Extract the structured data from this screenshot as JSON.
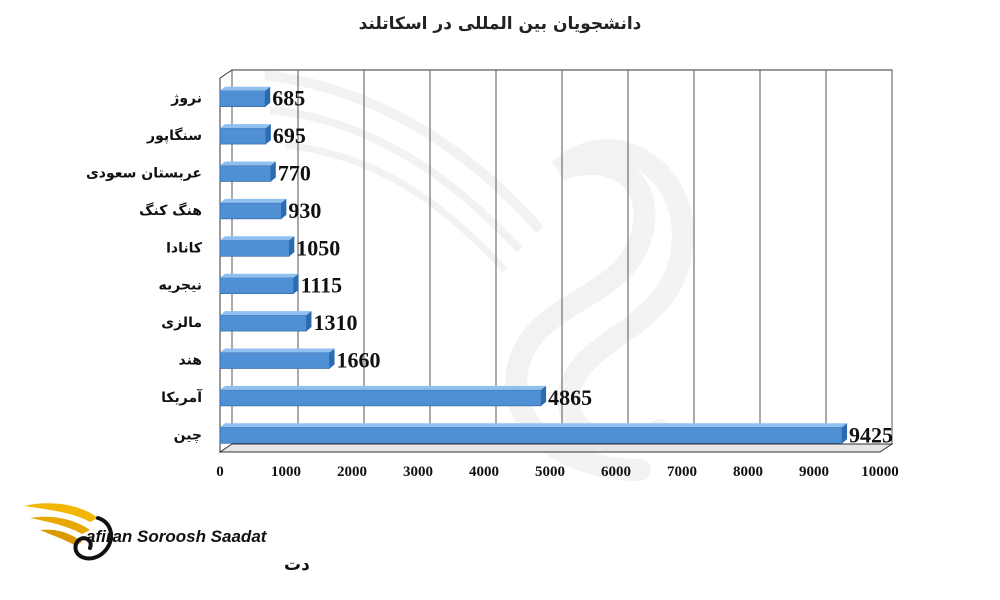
{
  "chart_data": {
    "type": "bar",
    "orientation": "horizontal",
    "title": "دانشجویان بین المللی در اسکاتلند",
    "categories": [
      "نروژ",
      "سنگاپور",
      "عربستان سعودی",
      "هنگ کنگ",
      "کانادا",
      "نیجریه",
      "مالزی",
      "هند",
      "آمریکا",
      "چین"
    ],
    "values": [
      685,
      695,
      770,
      930,
      1050,
      1115,
      1310,
      1660,
      4865,
      9425
    ],
    "xlim": [
      0,
      10000
    ],
    "xticks": [
      0,
      1000,
      2000,
      3000,
      4000,
      5000,
      6000,
      7000,
      8000,
      9000,
      10000
    ],
    "grid": true,
    "legend": "none",
    "bar_color": "#4f8fd4"
  },
  "brand": {
    "name_en": "afiran Soroosh Saadat",
    "name_fa": "سفیران سروش سعادت"
  }
}
